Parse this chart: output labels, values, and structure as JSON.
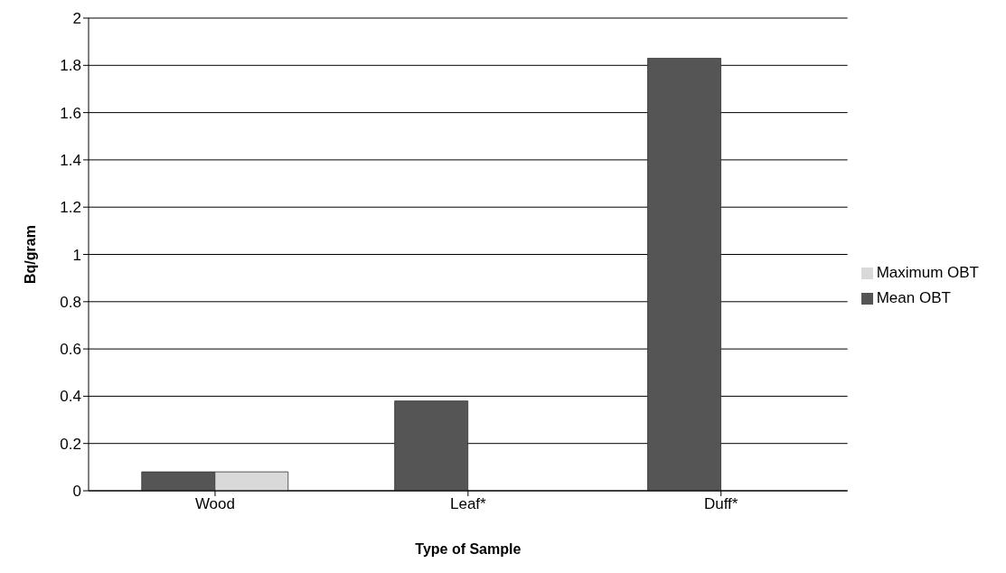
{
  "chart_data": {
    "type": "bar",
    "xlabel": "Type of Sample",
    "ylabel": "Bq/gram",
    "categories": [
      "Wood",
      "Leaf*",
      "Duff*"
    ],
    "series": [
      {
        "name": "Mean OBT",
        "color": "#555555",
        "values": [
          0.08,
          0.38,
          1.83
        ]
      },
      {
        "name": "Maximum OBT",
        "color": "#d9d9d9",
        "values": [
          0.08,
          null,
          null
        ]
      }
    ],
    "ylim": [
      0,
      2
    ],
    "yticks": [
      0,
      0.2,
      0.4,
      0.6,
      0.8,
      1,
      1.2,
      1.4,
      1.6,
      1.8,
      2
    ],
    "grid": "y",
    "legend": "right"
  }
}
